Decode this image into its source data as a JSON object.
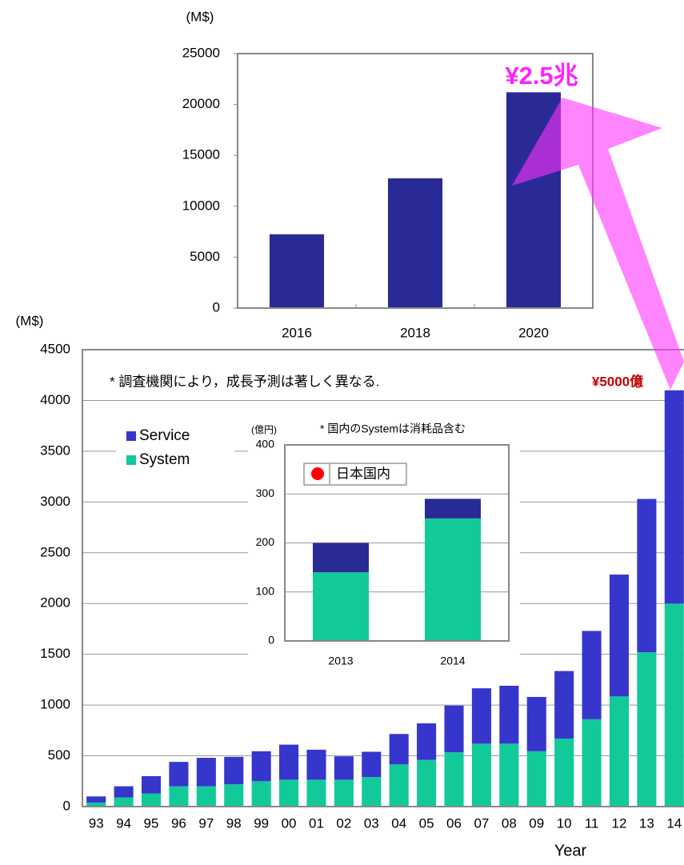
{
  "chart_data": [
    {
      "type": "bar",
      "y_label": "(M$)",
      "annotation": "¥2.5兆",
      "categories": [
        "2016",
        "2018",
        "2020"
      ],
      "values": [
        7250,
        12750,
        21200
      ],
      "color": "#2a2a96",
      "ylim": [
        0,
        25000
      ],
      "yticks": [
        0,
        5000,
        10000,
        15000,
        20000,
        25000
      ],
      "grid": false
    },
    {
      "type": "stacked_bar",
      "y_label": "(M$)",
      "x_label": "Year",
      "annotations": [
        "* 調査機関により，成長予測は著しく異なる.",
        "¥5000億"
      ],
      "categories": [
        "93",
        "94",
        "95",
        "96",
        "97",
        "98",
        "99",
        "00",
        "01",
        "02",
        "03",
        "04",
        "05",
        "06",
        "07",
        "08",
        "09",
        "10",
        "11",
        "12",
        "13",
        "14"
      ],
      "series": [
        {
          "name": "System",
          "color": "#12c99a",
          "values": [
            40,
            90,
            130,
            200,
            200,
            220,
            250,
            265,
            265,
            265,
            290,
            415,
            460,
            535,
            620,
            620,
            545,
            670,
            860,
            1085,
            1520,
            2000
          ]
        },
        {
          "name": "Service",
          "color": "#3636cc",
          "values": [
            60,
            110,
            170,
            240,
            280,
            270,
            295,
            345,
            295,
            230,
            250,
            300,
            360,
            460,
            545,
            570,
            535,
            665,
            870,
            1200,
            1510,
            2100
          ]
        }
      ],
      "legend": "upper left",
      "ylim": [
        0,
        4500
      ],
      "yticks": [
        0,
        500,
        1000,
        1500,
        2000,
        2500,
        3000,
        3500,
        4000,
        4500
      ],
      "grid": true
    },
    {
      "type": "stacked_bar",
      "y_label": "(億円)",
      "annotation": "* 国内のSystemは消耗品含む",
      "legend_title": "日本国内",
      "categories": [
        "2013",
        "2014"
      ],
      "series": [
        {
          "color": "#12c99a",
          "values": [
            140,
            250
          ]
        },
        {
          "color": "#2a2a96",
          "values": [
            60,
            40
          ]
        }
      ],
      "ylim": [
        0,
        400
      ],
      "yticks": [
        0,
        100,
        200,
        300,
        400
      ],
      "grid": true
    }
  ]
}
